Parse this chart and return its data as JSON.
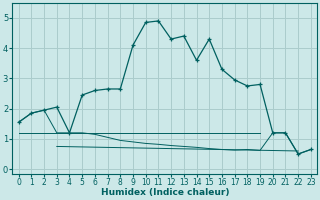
{
  "xlabel": "Humidex (Indice chaleur)",
  "xlim": [
    -0.5,
    23.5
  ],
  "ylim": [
    -0.15,
    5.5
  ],
  "xticks": [
    0,
    1,
    2,
    3,
    4,
    5,
    6,
    7,
    8,
    9,
    10,
    11,
    12,
    13,
    14,
    15,
    16,
    17,
    18,
    19,
    20,
    21,
    22,
    23
  ],
  "yticks": [
    0,
    1,
    2,
    3,
    4,
    5
  ],
  "background_color": "#cce8e8",
  "grid_color": "#aacccc",
  "line_color": "#006060",
  "line1_x": [
    0,
    1,
    2,
    3,
    4,
    5,
    6,
    7,
    8,
    9,
    10,
    11,
    12,
    13,
    14,
    15,
    16,
    17,
    18,
    19,
    20,
    21,
    22,
    23
  ],
  "line1_y": [
    1.55,
    1.85,
    1.95,
    2.05,
    1.2,
    2.45,
    2.6,
    2.65,
    2.65,
    4.1,
    4.85,
    4.9,
    4.3,
    4.4,
    3.6,
    4.3,
    3.3,
    2.95,
    2.75,
    2.8,
    1.2,
    1.2,
    0.5,
    0.65
  ],
  "line2_x": [
    0,
    1,
    2,
    3,
    4,
    5,
    6,
    7,
    8,
    9,
    10,
    11,
    12,
    13,
    14,
    15,
    16,
    17,
    18,
    19,
    20,
    21,
    22,
    23
  ],
  "line2_y": [
    1.55,
    1.85,
    1.95,
    1.2,
    1.2,
    1.2,
    1.15,
    1.05,
    0.95,
    0.9,
    0.85,
    0.82,
    0.78,
    0.75,
    0.72,
    0.68,
    0.65,
    0.63,
    0.65,
    0.62,
    1.2,
    1.2,
    0.5,
    0.65
  ],
  "line3_x": [
    0,
    19
  ],
  "line3_y": [
    1.2,
    1.2
  ],
  "line4_x": [
    3,
    22
  ],
  "line4_y": [
    0.75,
    0.6
  ]
}
